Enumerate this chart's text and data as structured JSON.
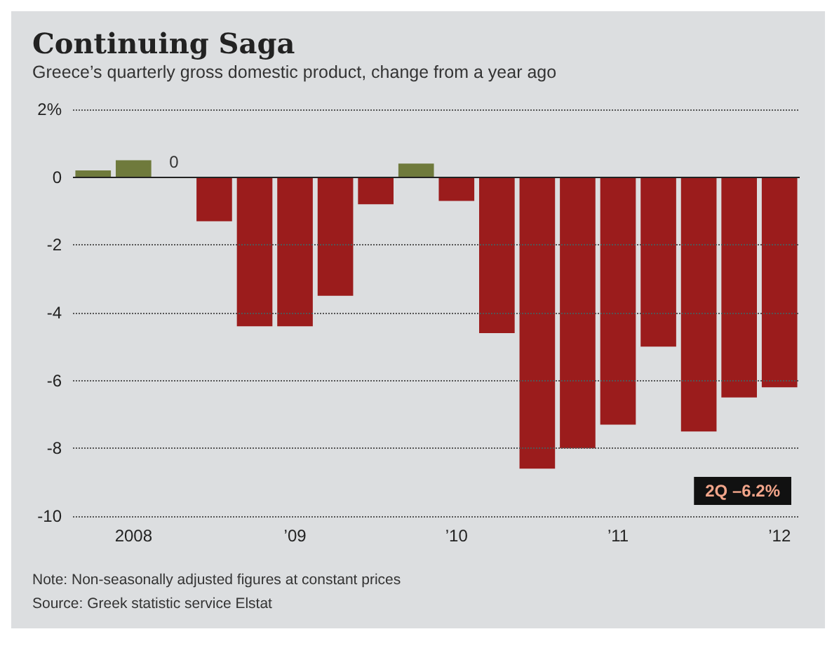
{
  "chart_data": {
    "type": "bar",
    "title": "Continuing Saga",
    "subtitle": "Greece’s quarterly gross domestic product, change from a year ago",
    "categories": [
      null,
      "2008",
      null,
      null,
      null,
      "’09",
      null,
      null,
      null,
      "’10",
      null,
      null,
      null,
      "’11",
      null,
      null,
      null,
      "’12"
    ],
    "values": [
      0.2,
      0.5,
      0,
      -1.3,
      -4.4,
      -4.4,
      -3.5,
      -0.8,
      0.4,
      -0.7,
      -4.6,
      -8.6,
      -8.0,
      -7.3,
      -5.0,
      -7.5,
      -6.5,
      -6.2
    ],
    "colors": [
      "#6f7a3c",
      "#6f7a3c",
      "#6f7a3c",
      "#9b1c1c",
      "#9b1c1c",
      "#9b1c1c",
      "#9b1c1c",
      "#9b1c1c",
      "#6f7a3c",
      "#9b1c1c",
      "#9b1c1c",
      "#9b1c1c",
      "#9b1c1c",
      "#9b1c1c",
      "#9b1c1c",
      "#9b1c1c",
      "#9b1c1c",
      "#9b1c1c"
    ],
    "value_labels": [
      null,
      null,
      "0",
      null,
      null,
      null,
      null,
      null,
      null,
      null,
      null,
      null,
      null,
      null,
      null,
      null,
      null,
      null
    ],
    "ylim": [
      -10,
      2
    ],
    "yticks": [
      {
        "value": 2,
        "label": "2%"
      },
      0,
      -2,
      -4,
      -6,
      -8,
      -10
    ],
    "grid": "y",
    "annotations": [
      "2Q –6.2%",
      "Note: Non-seasonally adjusted figures at constant prices",
      "Source: Greek statistic service Elstat"
    ]
  }
}
